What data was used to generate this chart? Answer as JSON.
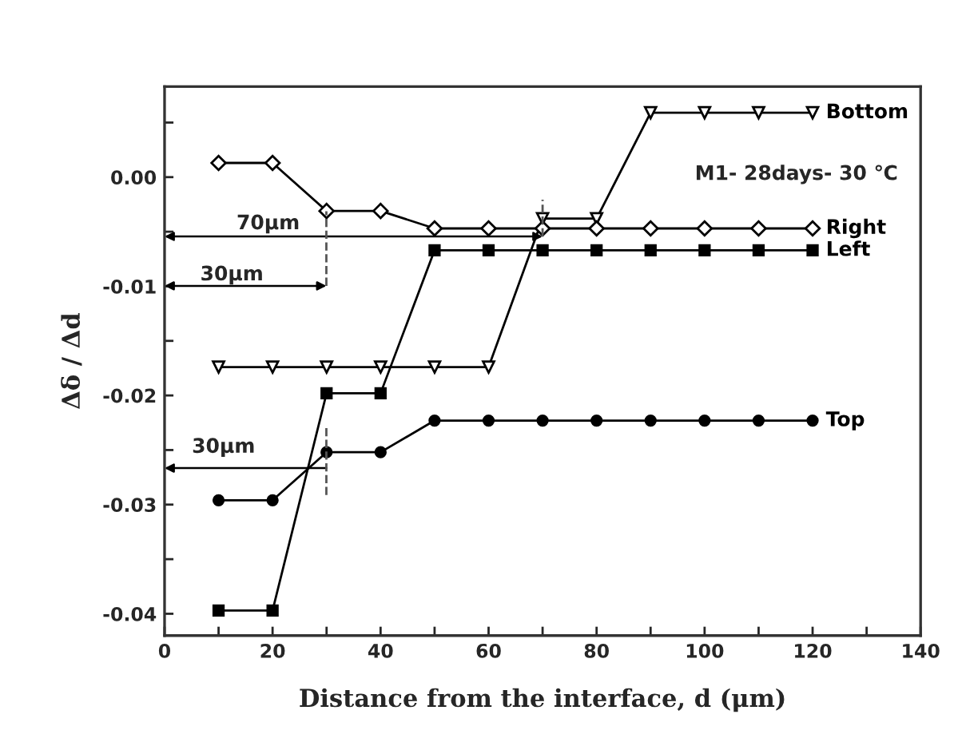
{
  "chart_data": {
    "type": "line",
    "xlabel": "Distance from the interface, d (μm)",
    "ylabel": "Δδ / Δd",
    "x": [
      10,
      20,
      30,
      40,
      50,
      60,
      70,
      80,
      90,
      100,
      110,
      120
    ],
    "series": [
      {
        "name": "Bottom",
        "color": "#000000",
        "marker": "triangle",
        "values": [
          -0.0174,
          -0.0174,
          -0.0174,
          -0.0174,
          -0.0174,
          -0.0174,
          -0.0038,
          -0.0038,
          0.0059,
          0.0059,
          0.0059,
          0.0059
        ]
      },
      {
        "name": "Right",
        "color": "#000000",
        "marker": "diamond",
        "values": [
          0.0013,
          0.0013,
          -0.0031,
          -0.0031,
          -0.0047,
          -0.0047,
          -0.0047,
          -0.0047,
          -0.0047,
          -0.0047,
          -0.0047,
          -0.0047
        ]
      },
      {
        "name": "Left",
        "color": "#000000",
        "marker": "square",
        "values": [
          -0.0397,
          -0.0397,
          -0.0198,
          -0.0198,
          -0.0067,
          -0.0067,
          -0.0067,
          -0.0067,
          -0.0067,
          -0.0067,
          -0.0067,
          -0.0067
        ]
      },
      {
        "name": "Top",
        "color": "#000000",
        "marker": "circle",
        "values": [
          -0.0296,
          -0.0296,
          -0.0252,
          -0.0252,
          -0.0223,
          -0.0223,
          -0.0223,
          -0.0223,
          -0.0223,
          -0.0223,
          -0.0223,
          -0.0223
        ]
      }
    ],
    "xlim": [
      0,
      140
    ],
    "xticks": [
      0,
      {
        "value": 10,
        "label": null
      },
      20,
      {
        "value": 30,
        "label": null
      },
      40,
      {
        "value": 50,
        "label": null
      },
      60,
      {
        "value": 70,
        "label": null
      },
      80,
      {
        "value": 90,
        "label": null
      },
      100,
      {
        "value": 110,
        "label": null
      },
      120,
      {
        "value": 130,
        "label": null
      },
      140
    ],
    "ylim": [
      -0.042,
      0.0083
    ],
    "yticks": [
      {
        "value": -0.04,
        "label": "-0.04"
      },
      {
        "value": -0.035,
        "label": null
      },
      {
        "value": -0.03,
        "label": "-0.03"
      },
      {
        "value": -0.025,
        "label": null
      },
      {
        "value": -0.02,
        "label": "-0.02"
      },
      {
        "value": -0.015,
        "label": null
      },
      {
        "value": -0.01,
        "label": "-0.01"
      },
      {
        "value": -0.005,
        "label": null
      },
      {
        "value": 0.0,
        "label": "0.00"
      },
      {
        "value": 0.005,
        "label": null
      }
    ],
    "annotations": [
      "M1- 28days- 30 ℃",
      "70μm",
      "30μm",
      "30μm"
    ],
    "legend": false,
    "grid": false
  }
}
